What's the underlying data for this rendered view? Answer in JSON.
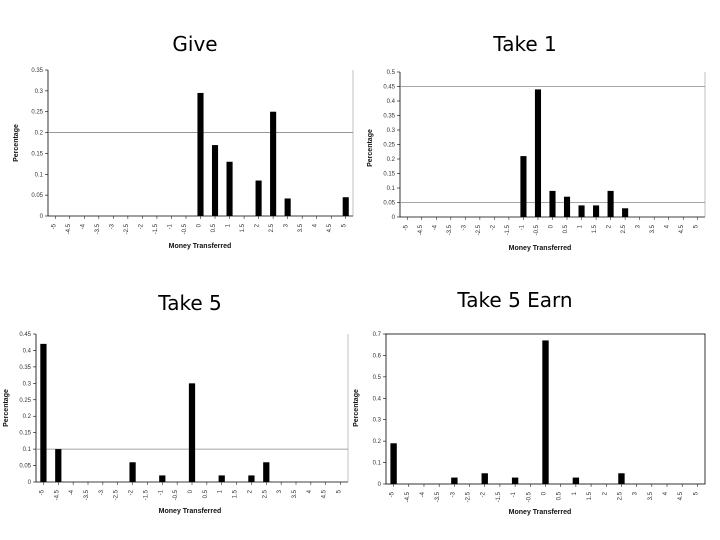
{
  "chart_data": [
    {
      "type": "bar",
      "title": "Give",
      "xlabel": "Money Transferred",
      "ylabel": "Percentage",
      "ylim": [
        0,
        0.35
      ],
      "yticks": [
        "0",
        "0.05",
        "0.1",
        "0.15",
        "0.2",
        "0.25",
        "0.3",
        "0.35"
      ],
      "categories": [
        "-5",
        "-4.5",
        "-4",
        "-3.5",
        "-3",
        "-2.5",
        "-2",
        "-1.5",
        "-1",
        "-0.5",
        "0",
        "0.5",
        "1",
        "1.5",
        "2",
        "2.5",
        "3",
        "3.5",
        "4",
        "4.5",
        "5"
      ],
      "values": [
        0,
        0,
        0,
        0,
        0,
        0,
        0,
        0,
        0,
        0,
        0.295,
        0.17,
        0.13,
        0,
        0.085,
        0.25,
        0.042,
        0,
        0,
        0,
        0.045
      ],
      "ref_line": 0.2,
      "border": "none"
    },
    {
      "type": "bar",
      "title": "Take 1",
      "xlabel": "Money Transferred",
      "ylabel": "Percentage",
      "ylim": [
        0,
        0.5
      ],
      "yticks": [
        "0",
        "0.05",
        "0.1",
        "0.15",
        "0.2",
        "0.25",
        "0.3",
        "0.35",
        "0.4",
        "0.45",
        "0.5"
      ],
      "categories": [
        "-5",
        "-4.5",
        "-4",
        "-3.5",
        "-3",
        "-2.5",
        "-2",
        "-1.5",
        "-1",
        "-0.5",
        "0",
        "0.5",
        "1",
        "1.5",
        "2",
        "2.5",
        "3",
        "3.5",
        "4",
        "4.5",
        "5"
      ],
      "values": [
        0,
        0,
        0,
        0,
        0,
        0,
        0,
        0,
        0.21,
        0.44,
        0.09,
        0.07,
        0.04,
        0.04,
        0.09,
        0.03,
        0,
        0,
        0,
        0,
        0
      ],
      "ref_lines": [
        0.45,
        0.05
      ],
      "border": "none"
    },
    {
      "type": "bar",
      "title": "Take 5",
      "xlabel": "Money Transferred",
      "ylabel": "Percentage",
      "ylim": [
        0,
        0.45
      ],
      "yticks": [
        "0",
        "0.05",
        "0.1",
        "0.15",
        "0.2",
        "0.25",
        "0.3",
        "0.35",
        "0.4",
        "0.45"
      ],
      "categories": [
        "-5",
        "-4.5",
        "-4",
        "-3.5",
        "-3",
        "-2.5",
        "-2",
        "-1.5",
        "-1",
        "-0.5",
        "0",
        "0.5",
        "1",
        "1.5",
        "2",
        "2.5",
        "3",
        "3.5",
        "4",
        "4.5",
        "5"
      ],
      "values": [
        0.42,
        0.1,
        0,
        0,
        0,
        0,
        0.06,
        0,
        0.02,
        0,
        0.3,
        0,
        0.02,
        0,
        0.02,
        0.06,
        0,
        0,
        0,
        0,
        0
      ],
      "ref_line": 0.1,
      "border": "none"
    },
    {
      "type": "bar",
      "title": "Take 5 Earn",
      "xlabel": "Money Transferred",
      "ylabel": "Percentage",
      "ylim": [
        0,
        0.7
      ],
      "yticks": [
        "0",
        "0.1",
        "0.2",
        "0.3",
        "0.4",
        "0.5",
        "0.6",
        "0.7"
      ],
      "categories": [
        "-5",
        "-4.5",
        "-4",
        "-3.5",
        "-3",
        "-2.5",
        "-2",
        "-1.5",
        "-1",
        "-0.5",
        "0",
        "0.5",
        "1",
        "1.5",
        "2",
        "2.5",
        "3",
        "3.5",
        "4",
        "4.5",
        "5"
      ],
      "values": [
        0.19,
        0,
        0,
        0,
        0.03,
        0,
        0.05,
        0,
        0.03,
        0,
        0.67,
        0,
        0.03,
        0,
        0,
        0.05,
        0,
        0,
        0,
        0,
        0
      ],
      "border": "box"
    }
  ]
}
